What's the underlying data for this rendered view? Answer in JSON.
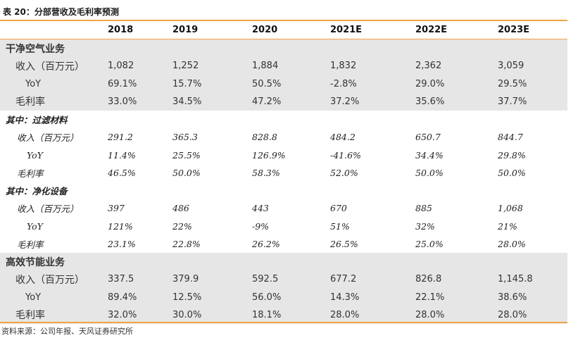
{
  "caption": "表 20：分部营收及毛利率预测",
  "source": "资料来源：公司年报、天风证券研究所",
  "colors": {
    "accent_rule": "#f3a347",
    "row_gray": "#e6e6e6"
  },
  "header": [
    "",
    "2018",
    "2019",
    "2020",
    "2021E",
    "2022E",
    "2023E"
  ],
  "rows": [
    {
      "label": "干净空气业务",
      "values": [
        "",
        "",
        "",
        "",
        "",
        ""
      ]
    },
    {
      "label": "收入（百万元）",
      "values": [
        "1,082",
        "1,252",
        "1,884",
        "1,832",
        "2,362",
        "3,059"
      ]
    },
    {
      "label": "YoY",
      "values": [
        "69.1%",
        "15.7%",
        "50.5%",
        "-2.8%",
        "29.0%",
        "29.5%"
      ]
    },
    {
      "label": "毛利率",
      "values": [
        "33.0%",
        "34.5%",
        "47.2%",
        "37.2%",
        "35.6%",
        "37.7%"
      ]
    },
    {
      "label": "其中：过滤材料",
      "values": [
        "",
        "",
        "",
        "",
        "",
        ""
      ]
    },
    {
      "label": "收入（百万元）",
      "values": [
        "291.2",
        "365.3",
        "828.8",
        "484.2",
        "650.7",
        "844.7"
      ]
    },
    {
      "label": "YoY",
      "values": [
        "11.4%",
        "25.5%",
        "126.9%",
        "-41.6%",
        "34.4%",
        "29.8%"
      ]
    },
    {
      "label": "毛利率",
      "values": [
        "46.5%",
        "50.0%",
        "58.3%",
        "52.0%",
        "50.0%",
        "50.0%"
      ]
    },
    {
      "label": "其中：净化设备",
      "values": [
        "",
        "",
        "",
        "",
        "",
        ""
      ]
    },
    {
      "label": "收入（百万元）",
      "values": [
        "397",
        "486",
        "443",
        "670",
        "885",
        "1,068"
      ]
    },
    {
      "label": "YoY",
      "values": [
        "121%",
        "22%",
        "-9%",
        "51%",
        "32%",
        "21%"
      ]
    },
    {
      "label": "毛利率",
      "values": [
        "23.1%",
        "22.8%",
        "26.2%",
        "26.5%",
        "25.0%",
        "28.0%"
      ]
    },
    {
      "label": "高效节能业务",
      "values": [
        "",
        "",
        "",
        "",
        "",
        ""
      ]
    },
    {
      "label": "收入（百万元）",
      "values": [
        "337.5",
        "379.9",
        "592.5",
        "677.2",
        "826.8",
        "1,145.8"
      ]
    },
    {
      "label": "YoY",
      "values": [
        "89.4%",
        "12.5%",
        "56.0%",
        "14.3%",
        "22.1%",
        "38.6%"
      ]
    },
    {
      "label": "毛利率",
      "values": [
        "32.0%",
        "30.0%",
        "18.1%",
        "28.0%",
        "28.0%",
        "28.0%"
      ]
    }
  ]
}
